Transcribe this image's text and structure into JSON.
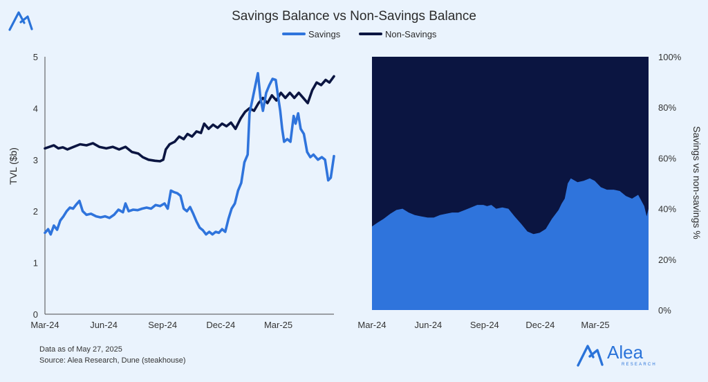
{
  "title": "Savings Balance vs Non-Savings Balance",
  "legend": [
    {
      "label": "Savings",
      "color": "#2f74dc"
    },
    {
      "label": "Non-Savings",
      "color": "#0b1541"
    }
  ],
  "footnote": {
    "date_line": "Data as of May 27, 2025",
    "source_line": "Source: Alea Research, Dune (steakhouse)"
  },
  "brand": {
    "name": "Alea",
    "subtitle": "RESEARCH",
    "logo_icon": "alea-logo-icon",
    "color": "#2a73d9"
  },
  "chart_data": [
    {
      "type": "line",
      "title": "",
      "xlabel": "",
      "ylabel": "TVL ($b)",
      "x_ticks": [
        "Mar-24",
        "Jun-24",
        "Sep-24",
        "Dec-24",
        "Mar-25"
      ],
      "x_range": [
        "2024-03-01",
        "2025-05-27"
      ],
      "ylim": [
        0,
        5
      ],
      "y_ticks": [
        "0",
        "1",
        "2",
        "3",
        "4",
        "5"
      ],
      "grid": false,
      "series": [
        {
          "name": "Savings",
          "color": "#2f74dc",
          "points": [
            [
              "2024-03-01",
              1.58
            ],
            [
              "2024-03-06",
              1.65
            ],
            [
              "2024-03-10",
              1.55
            ],
            [
              "2024-03-15",
              1.72
            ],
            [
              "2024-03-20",
              1.64
            ],
            [
              "2024-03-25",
              1.82
            ],
            [
              "2024-03-30",
              1.9
            ],
            [
              "2024-04-04",
              2.0
            ],
            [
              "2024-04-09",
              2.07
            ],
            [
              "2024-04-14",
              2.05
            ],
            [
              "2024-04-19",
              2.13
            ],
            [
              "2024-04-24",
              2.2
            ],
            [
              "2024-04-29",
              2.0
            ],
            [
              "2024-05-05",
              1.93
            ],
            [
              "2024-05-12",
              1.95
            ],
            [
              "2024-05-20",
              1.9
            ],
            [
              "2024-05-27",
              1.88
            ],
            [
              "2024-06-03",
              1.9
            ],
            [
              "2024-06-10",
              1.87
            ],
            [
              "2024-06-17",
              1.93
            ],
            [
              "2024-06-24",
              2.03
            ],
            [
              "2024-07-01",
              1.98
            ],
            [
              "2024-07-05",
              2.15
            ],
            [
              "2024-07-10",
              2.0
            ],
            [
              "2024-07-17",
              2.03
            ],
            [
              "2024-07-24",
              2.02
            ],
            [
              "2024-07-31",
              2.05
            ],
            [
              "2024-08-07",
              2.07
            ],
            [
              "2024-08-14",
              2.05
            ],
            [
              "2024-08-21",
              2.12
            ],
            [
              "2024-08-28",
              2.1
            ],
            [
              "2024-09-04",
              2.15
            ],
            [
              "2024-09-09",
              2.05
            ],
            [
              "2024-09-14",
              2.4
            ],
            [
              "2024-09-19",
              2.37
            ],
            [
              "2024-09-24",
              2.35
            ],
            [
              "2024-09-29",
              2.3
            ],
            [
              "2024-10-04",
              2.05
            ],
            [
              "2024-10-09",
              2.0
            ],
            [
              "2024-10-14",
              2.08
            ],
            [
              "2024-10-19",
              1.95
            ],
            [
              "2024-10-24",
              1.8
            ],
            [
              "2024-10-29",
              1.68
            ],
            [
              "2024-11-03",
              1.63
            ],
            [
              "2024-11-08",
              1.55
            ],
            [
              "2024-11-13",
              1.6
            ],
            [
              "2024-11-18",
              1.55
            ],
            [
              "2024-11-23",
              1.6
            ],
            [
              "2024-11-28",
              1.58
            ],
            [
              "2024-12-03",
              1.65
            ],
            [
              "2024-12-08",
              1.6
            ],
            [
              "2024-12-13",
              1.85
            ],
            [
              "2024-12-18",
              2.05
            ],
            [
              "2024-12-23",
              2.15
            ],
            [
              "2024-12-28",
              2.4
            ],
            [
              "2025-01-02",
              2.55
            ],
            [
              "2025-01-07",
              2.95
            ],
            [
              "2025-01-12",
              3.1
            ],
            [
              "2025-01-15",
              3.9
            ],
            [
              "2025-01-20",
              4.2
            ],
            [
              "2025-01-25",
              4.5
            ],
            [
              "2025-01-28",
              4.68
            ],
            [
              "2025-02-01",
              4.2
            ],
            [
              "2025-02-05",
              3.95
            ],
            [
              "2025-02-10",
              4.3
            ],
            [
              "2025-02-15",
              4.45
            ],
            [
              "2025-02-20",
              4.57
            ],
            [
              "2025-02-25",
              4.55
            ],
            [
              "2025-03-01",
              4.2
            ],
            [
              "2025-03-04",
              3.95
            ],
            [
              "2025-03-07",
              3.6
            ],
            [
              "2025-03-10",
              3.35
            ],
            [
              "2025-03-15",
              3.4
            ],
            [
              "2025-03-20",
              3.35
            ],
            [
              "2025-03-25",
              3.85
            ],
            [
              "2025-03-28",
              3.7
            ],
            [
              "2025-04-01",
              3.9
            ],
            [
              "2025-04-05",
              3.6
            ],
            [
              "2025-04-10",
              3.5
            ],
            [
              "2025-04-15",
              3.15
            ],
            [
              "2025-04-20",
              3.05
            ],
            [
              "2025-04-25",
              3.1
            ],
            [
              "2025-05-02",
              3.0
            ],
            [
              "2025-05-08",
              3.05
            ],
            [
              "2025-05-13",
              3.0
            ],
            [
              "2025-05-18",
              2.6
            ],
            [
              "2025-05-22",
              2.65
            ],
            [
              "2025-05-27",
              3.07
            ]
          ]
        },
        {
          "name": "Non-Savings",
          "color": "#0b1541",
          "points": [
            [
              "2024-03-01",
              3.22
            ],
            [
              "2024-03-08",
              3.25
            ],
            [
              "2024-03-15",
              3.28
            ],
            [
              "2024-03-22",
              3.22
            ],
            [
              "2024-03-29",
              3.24
            ],
            [
              "2024-04-05",
              3.2
            ],
            [
              "2024-04-15",
              3.25
            ],
            [
              "2024-04-25",
              3.3
            ],
            [
              "2024-05-05",
              3.28
            ],
            [
              "2024-05-15",
              3.32
            ],
            [
              "2024-05-25",
              3.25
            ],
            [
              "2024-06-05",
              3.22
            ],
            [
              "2024-06-15",
              3.25
            ],
            [
              "2024-06-25",
              3.2
            ],
            [
              "2024-07-05",
              3.25
            ],
            [
              "2024-07-15",
              3.15
            ],
            [
              "2024-07-25",
              3.12
            ],
            [
              "2024-08-01",
              3.05
            ],
            [
              "2024-08-10",
              3.0
            ],
            [
              "2024-08-20",
              2.98
            ],
            [
              "2024-08-28",
              2.97
            ],
            [
              "2024-09-02",
              3.0
            ],
            [
              "2024-09-06",
              3.2
            ],
            [
              "2024-09-12",
              3.3
            ],
            [
              "2024-09-20",
              3.35
            ],
            [
              "2024-09-27",
              3.45
            ],
            [
              "2024-10-04",
              3.4
            ],
            [
              "2024-10-10",
              3.5
            ],
            [
              "2024-10-17",
              3.45
            ],
            [
              "2024-10-24",
              3.55
            ],
            [
              "2024-10-31",
              3.52
            ],
            [
              "2024-11-05",
              3.7
            ],
            [
              "2024-11-12",
              3.6
            ],
            [
              "2024-11-19",
              3.68
            ],
            [
              "2024-11-26",
              3.62
            ],
            [
              "2024-12-03",
              3.7
            ],
            [
              "2024-12-10",
              3.65
            ],
            [
              "2024-12-17",
              3.72
            ],
            [
              "2024-12-24",
              3.6
            ],
            [
              "2025-01-01",
              3.8
            ],
            [
              "2025-01-08",
              3.93
            ],
            [
              "2025-01-15",
              4.0
            ],
            [
              "2025-01-22",
              3.95
            ],
            [
              "2025-01-29",
              4.1
            ],
            [
              "2025-02-05",
              4.2
            ],
            [
              "2025-02-12",
              4.1
            ],
            [
              "2025-02-19",
              4.25
            ],
            [
              "2025-02-26",
              4.15
            ],
            [
              "2025-03-05",
              4.3
            ],
            [
              "2025-03-12",
              4.2
            ],
            [
              "2025-03-19",
              4.3
            ],
            [
              "2025-03-26",
              4.2
            ],
            [
              "2025-04-02",
              4.3
            ],
            [
              "2025-04-09",
              4.2
            ],
            [
              "2025-04-16",
              4.1
            ],
            [
              "2025-04-23",
              4.35
            ],
            [
              "2025-04-30",
              4.5
            ],
            [
              "2025-05-07",
              4.45
            ],
            [
              "2025-05-14",
              4.55
            ],
            [
              "2025-05-20",
              4.5
            ],
            [
              "2025-05-27",
              4.62
            ]
          ]
        }
      ]
    },
    {
      "type": "area",
      "title": "",
      "xlabel": "",
      "ylabel": "Savings vs non-savings %",
      "stacked": true,
      "normalized": true,
      "x_ticks": [
        "Mar-24",
        "Jun-24",
        "Sep-24",
        "Dec-24",
        "Mar-25"
      ],
      "x_range": [
        "2024-03-01",
        "2025-05-27"
      ],
      "ylim": [
        0,
        100
      ],
      "y_ticks": [
        "0%",
        "20%",
        "40%",
        "60%",
        "80%",
        "100%"
      ],
      "y_axis_side": "right",
      "grid": false,
      "series": [
        {
          "name": "Savings",
          "color": "#2f74dc",
          "points": [
            [
              "2024-03-01",
              33
            ],
            [
              "2024-03-10",
              34.5
            ],
            [
              "2024-03-20",
              36
            ],
            [
              "2024-03-31",
              38
            ],
            [
              "2024-04-10",
              39.5
            ],
            [
              "2024-04-20",
              40
            ],
            [
              "2024-04-30",
              38.5
            ],
            [
              "2024-05-10",
              37.5
            ],
            [
              "2024-05-20",
              37
            ],
            [
              "2024-05-31",
              36.5
            ],
            [
              "2024-06-10",
              36.5
            ],
            [
              "2024-06-20",
              37.5
            ],
            [
              "2024-06-30",
              38
            ],
            [
              "2024-07-10",
              38.5
            ],
            [
              "2024-07-20",
              38.5
            ],
            [
              "2024-07-31",
              39.5
            ],
            [
              "2024-08-10",
              40.5
            ],
            [
              "2024-08-20",
              41.5
            ],
            [
              "2024-08-30",
              41.5
            ],
            [
              "2024-09-05",
              41
            ],
            [
              "2024-09-12",
              41.5
            ],
            [
              "2024-09-20",
              40
            ],
            [
              "2024-09-30",
              40.5
            ],
            [
              "2024-10-10",
              40
            ],
            [
              "2024-10-20",
              37
            ],
            [
              "2024-10-31",
              34
            ],
            [
              "2024-11-10",
              31
            ],
            [
              "2024-11-20",
              30
            ],
            [
              "2024-11-30",
              30.5
            ],
            [
              "2024-12-10",
              32
            ],
            [
              "2024-12-20",
              36
            ],
            [
              "2024-12-31",
              39.5
            ],
            [
              "2025-01-05",
              42
            ],
            [
              "2025-01-10",
              44
            ],
            [
              "2025-01-15",
              50
            ],
            [
              "2025-01-20",
              52
            ],
            [
              "2025-01-31",
              50.5
            ],
            [
              "2025-02-10",
              51
            ],
            [
              "2025-02-20",
              52
            ],
            [
              "2025-02-28",
              51
            ],
            [
              "2025-03-10",
              48.5
            ],
            [
              "2025-03-20",
              47.5
            ],
            [
              "2025-03-31",
              47.5
            ],
            [
              "2025-04-10",
              47
            ],
            [
              "2025-04-20",
              45
            ],
            [
              "2025-04-30",
              44
            ],
            [
              "2025-05-10",
              45.5
            ],
            [
              "2025-05-20",
              41
            ],
            [
              "2025-05-24",
              37
            ],
            [
              "2025-05-27",
              40
            ]
          ]
        },
        {
          "name": "Non-Savings",
          "color": "#0b1541"
        }
      ]
    }
  ]
}
